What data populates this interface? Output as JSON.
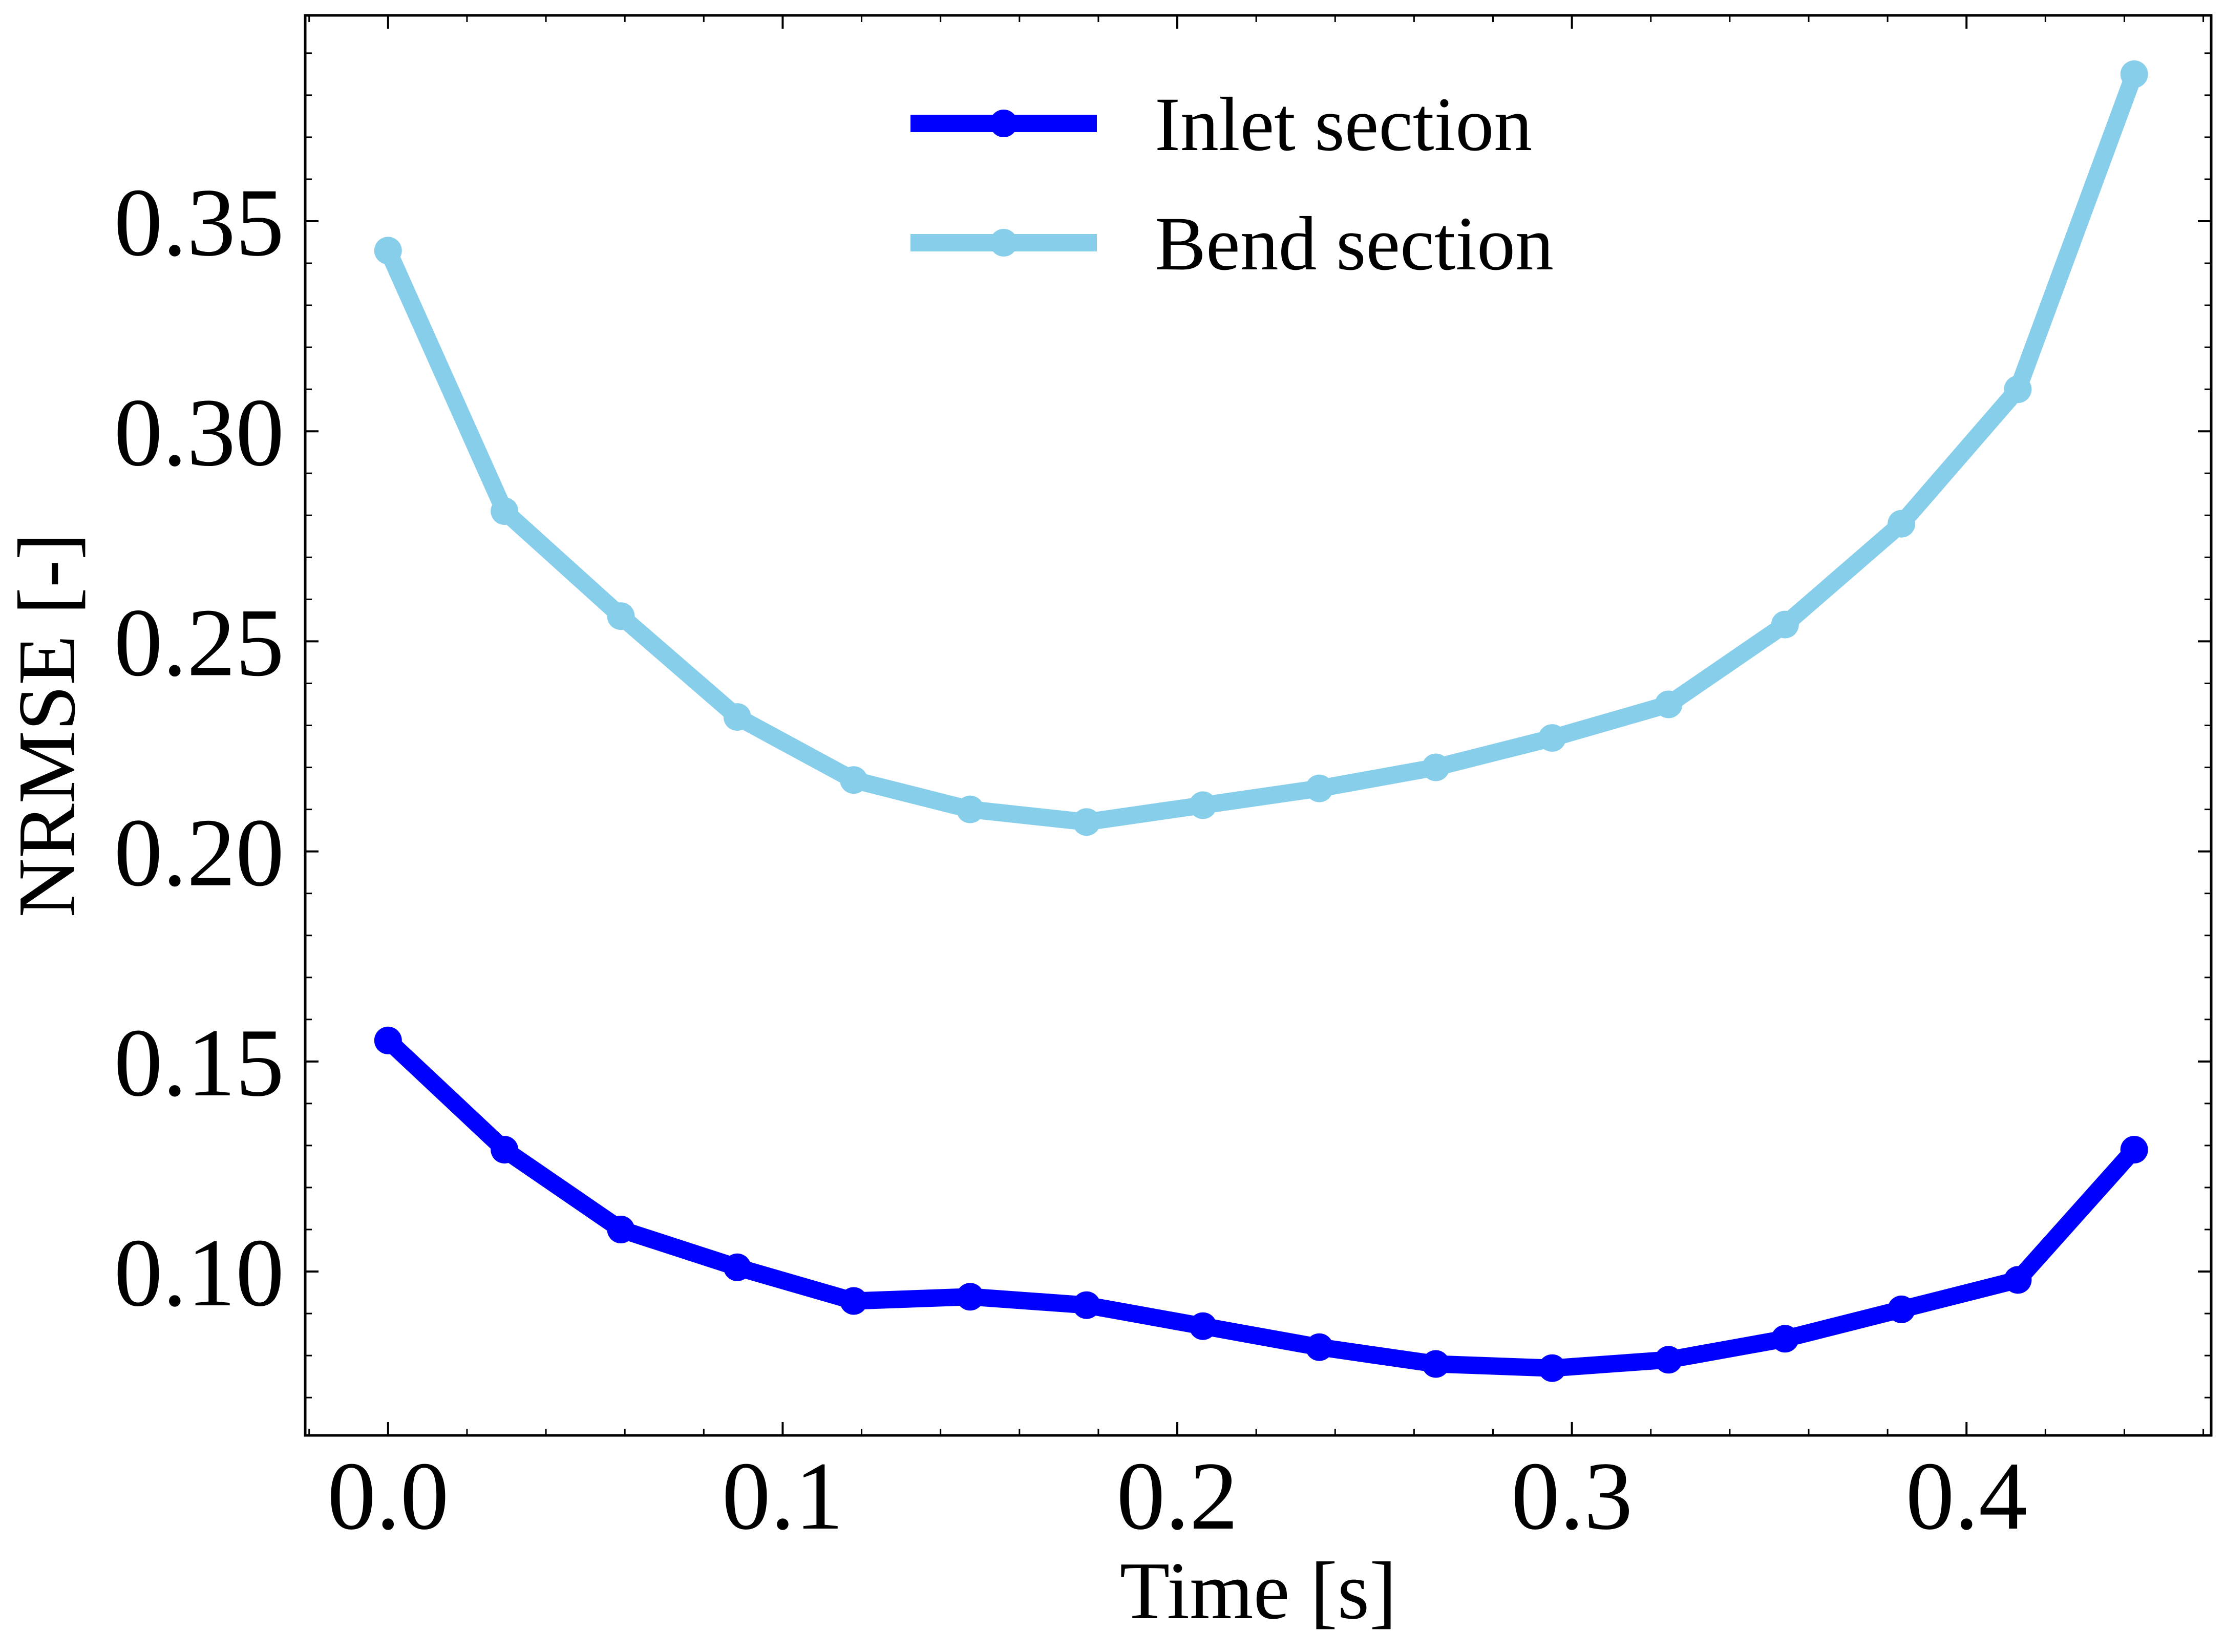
{
  "chart_data": {
    "type": "line",
    "title": "",
    "xlabel": "Time [s]",
    "ylabel": "NRMSE [-]",
    "xlim": [
      -0.021,
      0.462
    ],
    "ylim": [
      0.061,
      0.399
    ],
    "x_ticks": [
      0.0,
      0.1,
      0.2,
      0.3,
      0.4
    ],
    "x_tick_labels": [
      "0.0",
      "0.1",
      "0.2",
      "0.3",
      "0.4"
    ],
    "y_ticks": [
      0.1,
      0.15,
      0.2,
      0.25,
      0.3,
      0.35
    ],
    "y_tick_labels": [
      "0.10",
      "0.15",
      "0.20",
      "0.25",
      "0.30",
      "0.35"
    ],
    "x": [
      0.0,
      0.0295,
      0.059,
      0.0885,
      0.118,
      0.1475,
      0.177,
      0.2065,
      0.236,
      0.2655,
      0.295,
      0.3245,
      0.354,
      0.3835,
      0.413,
      0.4425
    ],
    "series": [
      {
        "name": "Inlet section",
        "color": "#0000ff",
        "values": [
          0.155,
          0.129,
          0.11,
          0.101,
          0.093,
          0.094,
          0.092,
          0.087,
          0.082,
          0.078,
          0.077,
          0.079,
          0.084,
          0.091,
          0.098,
          0.129
        ]
      },
      {
        "name": "Bend section",
        "color": "#87ceeb",
        "values": [
          0.343,
          0.281,
          0.256,
          0.232,
          0.217,
          0.21,
          0.207,
          0.211,
          0.215,
          0.22,
          0.227,
          0.235,
          0.254,
          0.278,
          0.31,
          0.385
        ]
      }
    ],
    "grid": false,
    "legend_position": "top-center"
  }
}
